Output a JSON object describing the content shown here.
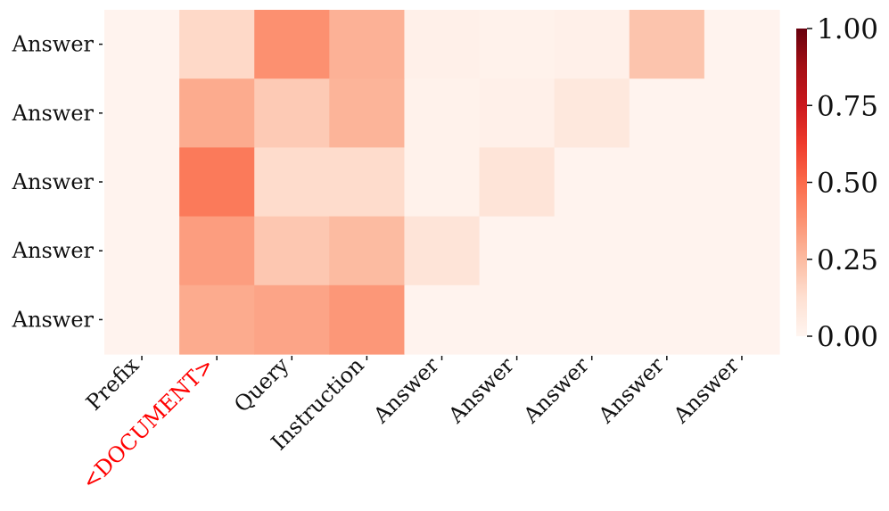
{
  "chart_data": {
    "type": "heatmap",
    "x_labels": [
      {
        "text": "Prefix",
        "color": "#111111"
      },
      {
        "text": "<DOCUMENT>",
        "color": "#ff0000"
      },
      {
        "text": "Query",
        "color": "#111111"
      },
      {
        "text": "Instruction",
        "color": "#111111"
      },
      {
        "text": "Answer",
        "color": "#111111"
      },
      {
        "text": "Answer",
        "color": "#111111"
      },
      {
        "text": "Answer",
        "color": "#111111"
      },
      {
        "text": "Answer",
        "color": "#111111"
      },
      {
        "text": "Answer",
        "color": "#111111"
      }
    ],
    "y_labels": [
      "Answer",
      "Answer",
      "Answer",
      "Answer",
      "Answer"
    ],
    "values": [
      [
        0.01,
        0.15,
        0.38,
        0.28,
        0.03,
        0.02,
        0.03,
        0.22,
        0.01
      ],
      [
        0.01,
        0.3,
        0.2,
        0.27,
        0.02,
        0.03,
        0.08,
        0.01,
        0.01
      ],
      [
        0.01,
        0.45,
        0.14,
        0.14,
        0.02,
        0.1,
        0.01,
        0.01,
        0.01
      ],
      [
        0.01,
        0.34,
        0.21,
        0.25,
        0.1,
        0.01,
        0.01,
        0.01,
        0.01
      ],
      [
        0.01,
        0.3,
        0.32,
        0.36,
        0.01,
        0.01,
        0.01,
        0.01,
        0.01
      ]
    ],
    "colorbar": {
      "min": 0.0,
      "max": 1.0,
      "ticks": [
        "0.00",
        "0.25",
        "0.50",
        "0.75",
        "1.00"
      ],
      "colormap": "Reds",
      "stops": [
        "#fff5f0",
        "#fee0d2",
        "#fcbba1",
        "#fc9272",
        "#fb6a4a",
        "#ef3b2c",
        "#cb181d",
        "#a50f15",
        "#67000d"
      ]
    }
  }
}
